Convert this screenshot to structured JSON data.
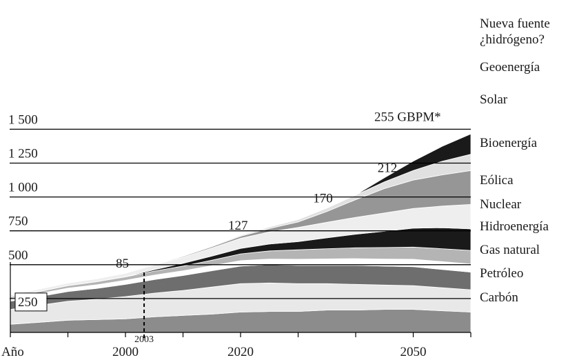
{
  "chart_data": {
    "type": "area",
    "stacked": true,
    "unit_label": "GBPM*",
    "xlabel": "Año",
    "x_tick_labels": [
      "2000",
      "2020",
      "2050"
    ],
    "marker": {
      "x": 2003,
      "label": "2003",
      "style": "dashed"
    },
    "y_tick_labels": [
      "250",
      "500",
      "750",
      "1 000",
      "1 250",
      "1 500"
    ],
    "y_ticks": [
      250,
      500,
      750,
      1000,
      1250,
      1500
    ],
    "ylim": [
      0,
      1500
    ],
    "xlim": [
      1980,
      2060
    ],
    "grid": "horizontal lines at tick values",
    "legend_placement": "right, aligned with bands",
    "annotations": [
      {
        "x": 2000,
        "y": 85,
        "text": "85"
      },
      {
        "x": 2020,
        "y": 127,
        "text": "127"
      },
      {
        "x": 2035,
        "y": 170,
        "text": "170"
      },
      {
        "x": 2045,
        "y": 212,
        "text": "212"
      },
      {
        "x": 2060,
        "y": 255,
        "text": "255 GBPM*"
      }
    ],
    "x": [
      1980,
      1985,
      1990,
      1995,
      2000,
      2005,
      2010,
      2015,
      2020,
      2025,
      2030,
      2035,
      2040,
      2045,
      2050,
      2055,
      2060
    ],
    "series": [
      {
        "name": "Carbón",
        "color": "#8c8c8c",
        "values": [
          60,
          75,
          90,
          95,
          100,
          115,
          125,
          135,
          150,
          155,
          155,
          165,
          165,
          170,
          170,
          160,
          150
        ]
      },
      {
        "name": "Petróleo",
        "color": "#e8e8e8",
        "values": [
          110,
          125,
          140,
          150,
          165,
          175,
          185,
          200,
          210,
          210,
          205,
          195,
          190,
          180,
          175,
          170,
          165
        ]
      },
      {
        "name": "Gas natural",
        "color": "#6e6e6e",
        "values": [
          60,
          65,
          72,
          80,
          90,
          100,
          110,
          120,
          130,
          135,
          135,
          135,
          140,
          140,
          140,
          135,
          130
        ]
      },
      {
        "name": "Hidroenergía",
        "color": "#ffffff",
        "values": [
          20,
          22,
          25,
          27,
          30,
          33,
          35,
          38,
          40,
          42,
          45,
          48,
          50,
          52,
          55,
          58,
          60
        ]
      },
      {
        "name": "Nuclear",
        "color": "#b4b4b4",
        "values": [
          12,
          15,
          18,
          22,
          25,
          30,
          35,
          40,
          50,
          60,
          70,
          75,
          80,
          85,
          90,
          95,
          100
        ]
      },
      {
        "name": "Eólica",
        "color": "#1a1a1a",
        "values": [
          0,
          0,
          0,
          0,
          2,
          10,
          20,
          30,
          40,
          50,
          60,
          80,
          100,
          120,
          140,
          155,
          160
        ]
      },
      {
        "name": "Bioenergía",
        "color": "#eeeeee",
        "values": [
          15,
          18,
          20,
          22,
          25,
          35,
          45,
          60,
          75,
          90,
          105,
          115,
          125,
          135,
          145,
          160,
          180
        ]
      },
      {
        "name": "Solar",
        "color": "#969696",
        "values": [
          0,
          0,
          0,
          0,
          1,
          3,
          6,
          10,
          15,
          25,
          40,
          80,
          130,
          180,
          210,
          230,
          250
        ]
      },
      {
        "name": "Geoenergía",
        "color": "#e0e0e0",
        "values": [
          0,
          0,
          0,
          0,
          1,
          2,
          3,
          5,
          8,
          12,
          18,
          25,
          35,
          50,
          70,
          100,
          120
        ]
      },
      {
        "name": "Nueva fuente ¿hidrógeno?",
        "color": "#1a1a1a",
        "values": [
          0,
          0,
          0,
          0,
          0,
          0,
          0,
          0,
          0,
          0,
          0,
          0,
          0,
          30,
          70,
          110,
          150
        ]
      }
    ]
  }
}
